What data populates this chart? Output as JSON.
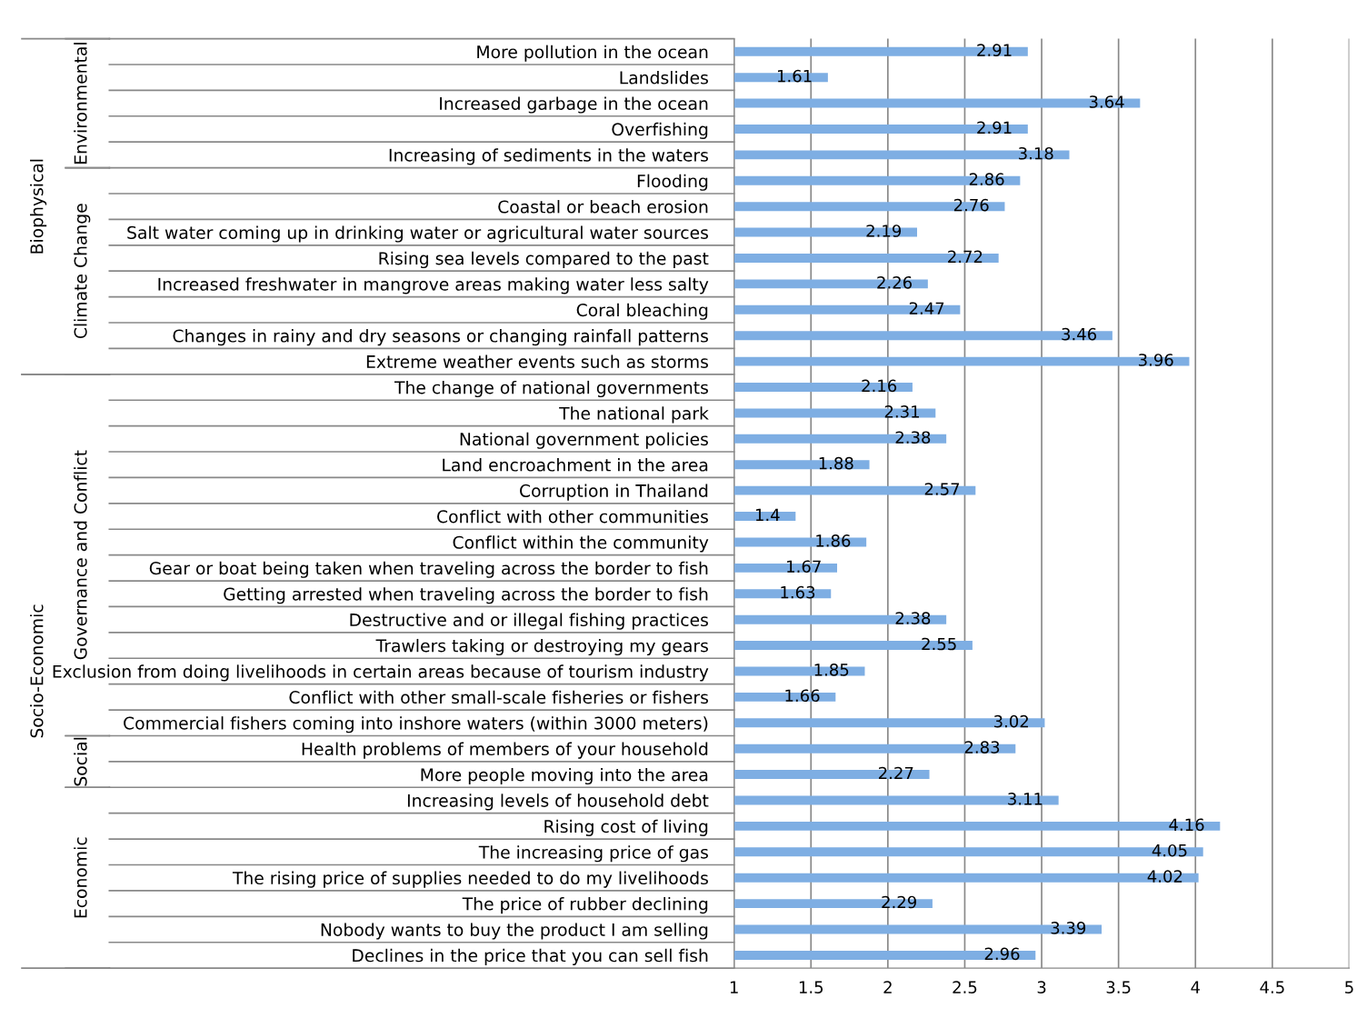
{
  "chart_data": {
    "type": "bar",
    "orientation": "horizontal",
    "categories": [
      "More pollution in the ocean",
      "Landslides",
      "Increased garbage in the ocean",
      "Overfishing",
      "Increasing of sediments in the waters",
      "Flooding",
      "Coastal or beach erosion",
      "Salt water coming up in drinking water or agricultural water sources",
      "Rising sea levels compared to the past",
      "Increased freshwater in mangrove areas making water less salty",
      "Coral bleaching",
      "Changes in rainy and dry seasons or changing rainfall patterns",
      "Extreme weather events such as storms",
      "The change of national governments",
      "The national park",
      "National government policies",
      "Land encroachment in the area",
      "Corruption in Thailand",
      "Conflict with other communities",
      "Conflict within the community",
      "Gear or boat being taken when traveling across the border to fish",
      "Getting arrested when traveling across the border to fish",
      "Destructive and or illegal fishing practices",
      "Trawlers taking or destroying my gears",
      "Exclusion from doing livelihoods in certain areas because of tourism industry",
      "Conflict with other small-scale fisheries or fishers",
      "Commercial fishers coming into inshore waters (within 3000 meters)",
      "Health problems of members of your household",
      "More people moving into the area",
      "Increasing levels of household debt",
      "Rising cost of living",
      "The increasing price of gas",
      "The rising price of supplies needed to do my livelihoods",
      "The price of rubber declining",
      "Nobody wants to buy the product I am selling",
      "Declines in the price that you can sell fish"
    ],
    "values": [
      2.91,
      1.61,
      3.64,
      2.91,
      3.18,
      2.86,
      2.76,
      2.19,
      2.72,
      2.26,
      2.47,
      3.46,
      3.96,
      2.16,
      2.31,
      2.38,
      1.88,
      2.57,
      1.4,
      1.86,
      1.67,
      1.63,
      2.38,
      2.55,
      1.85,
      1.66,
      3.02,
      2.83,
      2.27,
      3.11,
      4.16,
      4.05,
      4.02,
      2.29,
      3.39,
      2.96
    ],
    "color": "#7eaee3",
    "data_labels": true,
    "xlim": [
      1,
      5
    ],
    "xticks": [
      1,
      1.5,
      2,
      2.5,
      3,
      3.5,
      4,
      4.5,
      5
    ],
    "grid": "x",
    "annotations": [
      "Environmental",
      "Climate Change",
      "Governance and Conflict",
      "Social",
      "Economic",
      "Biophysical",
      "Socio-Economic"
    ]
  }
}
